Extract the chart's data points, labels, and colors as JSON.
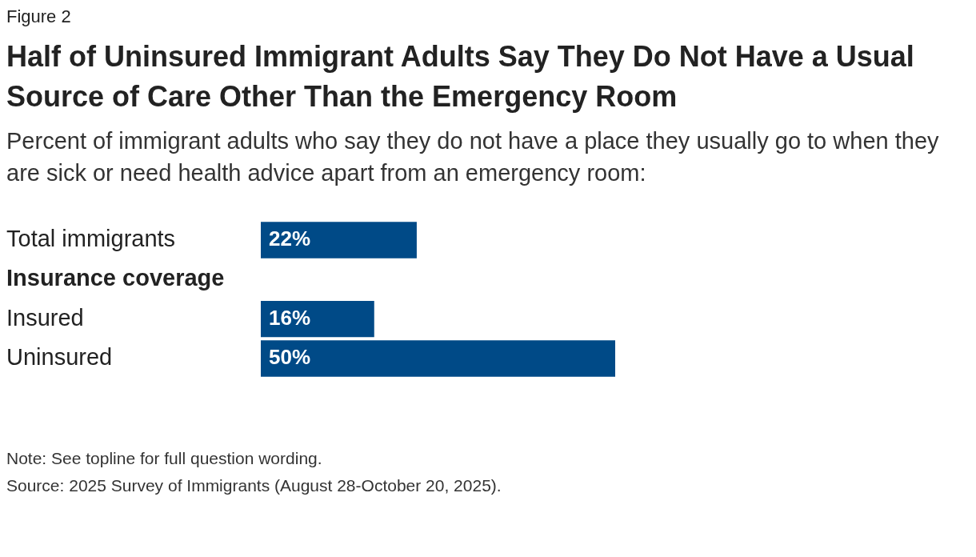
{
  "chart_data": {
    "type": "bar",
    "orientation": "horizontal",
    "title": "Half of Uninsured Immigrant Adults Say They Do Not Have a Usual Source of Care Other Than the Emergency Room",
    "subtitle": "Percent of immigrant adults who say they do not have a place they usually go to when they are sick or need health advice apart from an emergency room:",
    "categories": [
      "Total immigrants",
      "Insurance coverage",
      "Insured",
      "Uninsured"
    ],
    "values": [
      22,
      null,
      16,
      50
    ],
    "value_labels": [
      "22%",
      null,
      "16%",
      "50%"
    ],
    "color": "#004a87",
    "xlim": [
      0,
      100
    ],
    "annotations": [
      "Figure 2",
      "Note: See topline for full question wording.",
      "Source: 2025 Survey of Immigrants (August 28-October 20, 2025)."
    ]
  }
}
